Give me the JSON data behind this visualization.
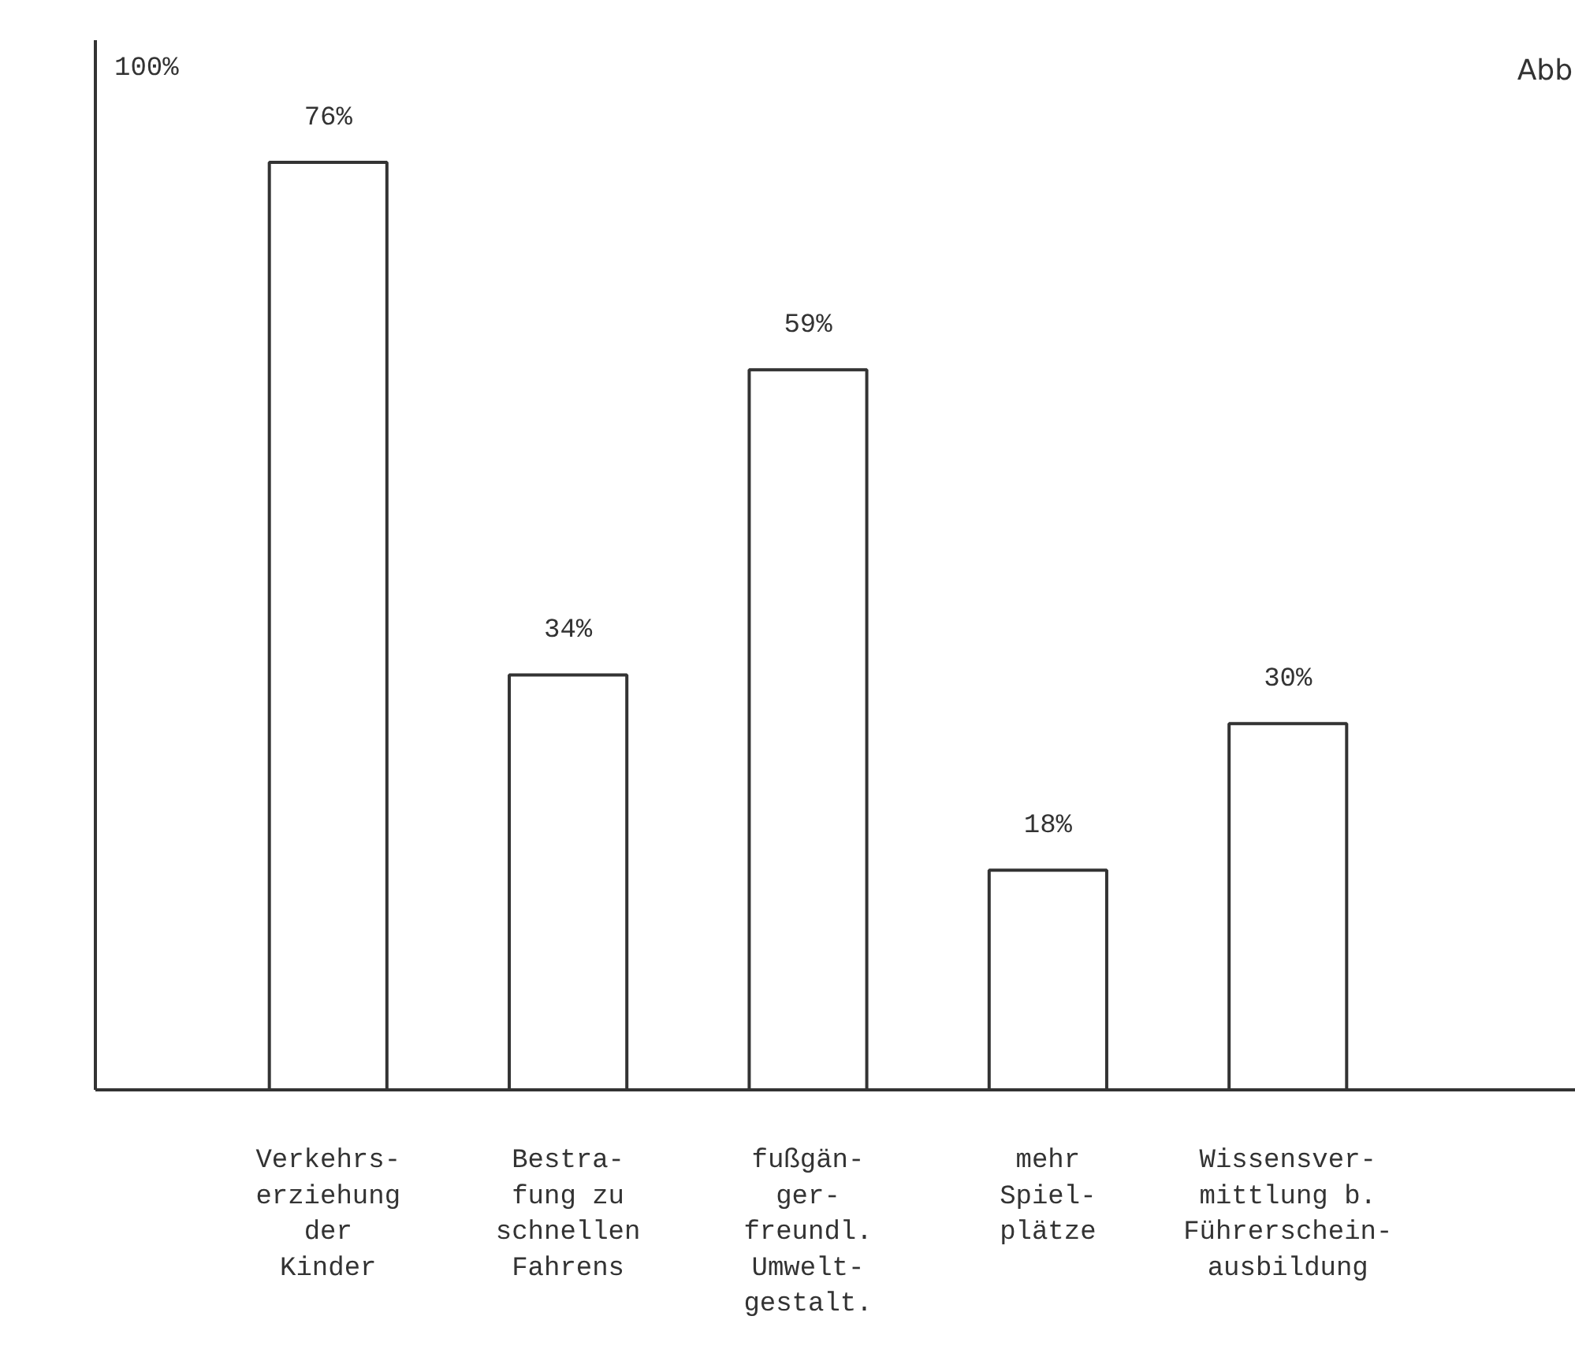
{
  "chart_data": {
    "type": "bar",
    "ylabel": "100%",
    "categories": [
      "Verkehrs-\nerziehung\nder\nKinder",
      "Bestra-\nfung zu\nschnellen\nFahrens",
      "fußgän-\nger-\nfreundl.\nUmwelt-\ngestalt.",
      "mehr\nSpiel-\nplätze",
      "Wissensver-\nmittlung b.\nFührerschein-\nausbildung"
    ],
    "values": [
      76,
      34,
      59,
      18,
      30
    ],
    "value_labels": [
      "76%",
      "34%",
      "59%",
      "18%",
      "30%"
    ],
    "color": "#ffffff",
    "ylim": [
      0,
      86
    ],
    "annotations": [
      "Abb"
    ]
  }
}
